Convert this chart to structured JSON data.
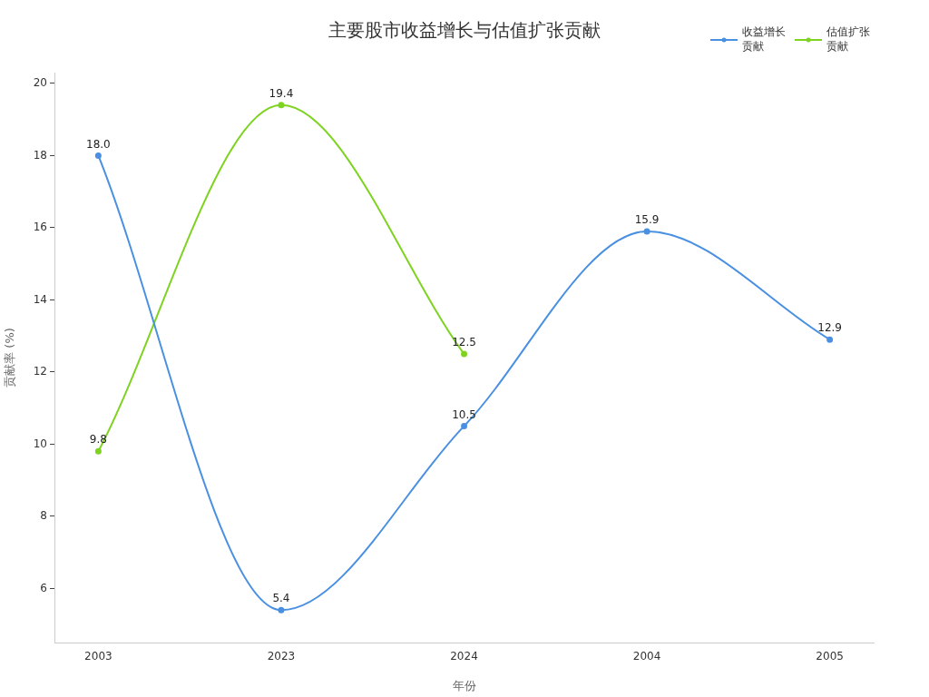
{
  "chart_data": {
    "type": "line",
    "title": "主要股市收益增长与估值扩张贡献",
    "xlabel": "年份",
    "ylabel": "贡献率 (%)",
    "categories": [
      "2003",
      "2023",
      "2024",
      "2004",
      "2005"
    ],
    "series": [
      {
        "name": "收益增长贡献",
        "color": "#4a90e2",
        "values": [
          18.0,
          5.4,
          10.5,
          15.9,
          12.9
        ],
        "value_labels": [
          "18.0",
          "5.4",
          "10.5",
          "15.9",
          "12.9"
        ]
      },
      {
        "name": "估值扩张贡献",
        "color": "#7ed321",
        "values": [
          9.8,
          19.4,
          12.5,
          null,
          null
        ],
        "value_labels": [
          "9.8",
          "19.4",
          "12.5",
          null,
          null
        ]
      }
    ],
    "ylim": [
      4.5,
      20.3
    ],
    "yticks": [
      6,
      8,
      10,
      12,
      14,
      16,
      18,
      20
    ],
    "grid": false,
    "legend": "top right",
    "marker": "circle"
  }
}
